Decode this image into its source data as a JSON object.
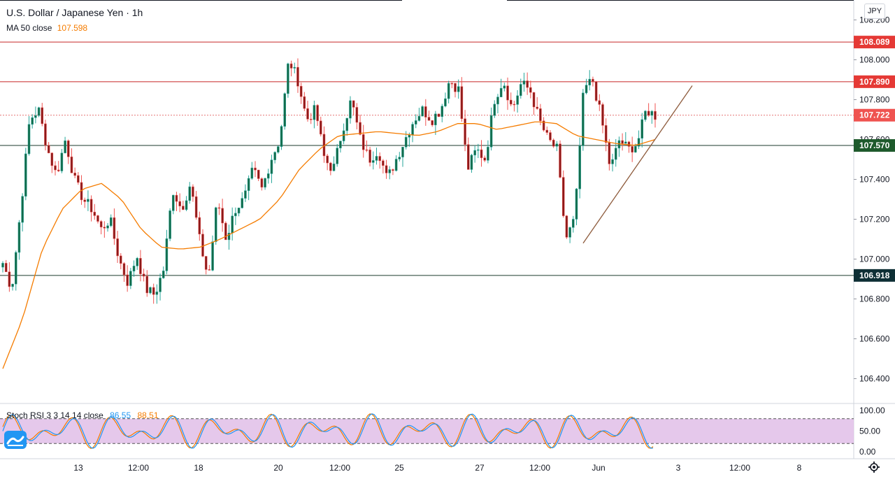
{
  "legend": {
    "title": "U.S. Dollar / Japanese Yen · 1h",
    "ma_label": "MA 50 close",
    "ma_value": "107.598"
  },
  "currency_badge": "JPY",
  "stoch": {
    "label": "Stoch RSI 3 3 14 14 close",
    "k_value": "86.55",
    "d_value": "88.51",
    "axis_ticks": [
      "100.00",
      "50.00",
      "0.00"
    ],
    "band_upper": 80,
    "band_lower": 20
  },
  "colors": {
    "up": "#26a69a",
    "down": "#ef5350",
    "candle_up_fill": "#136b4a",
    "candle_down_fill": "#8b1a1a",
    "ma": "#f57c00",
    "resistance": "#c62828",
    "support": "#1b3a2b",
    "last_price": "#e57373",
    "stoch_k": "#2196f3",
    "stoch_d": "#f57c00",
    "stoch_band": "#e1bee7",
    "trendline": "#8d5a3b"
  },
  "chart_data": {
    "type": "candlestick",
    "title": "U.S. Dollar / Japanese Yen · 1h",
    "y_axis": {
      "ticks": [
        "108.200",
        "108.000",
        "107.800",
        "107.600",
        "107.400",
        "107.200",
        "107.000",
        "106.800",
        "106.600",
        "106.400"
      ],
      "range": [
        106.3,
        108.25
      ]
    },
    "x_axis": {
      "ticks": [
        "13",
        "12:00",
        "18",
        "20",
        "12:00",
        "25",
        "27",
        "12:00",
        "Jun",
        "3",
        "12:00",
        "8"
      ]
    },
    "horizontal_levels": [
      {
        "value": 108.089,
        "label": "108.089",
        "kind": "resistance"
      },
      {
        "value": 107.89,
        "label": "107.890",
        "kind": "resistance"
      },
      {
        "value": 107.722,
        "label": "107.722",
        "kind": "last"
      },
      {
        "value": 107.57,
        "label": "107.570",
        "kind": "support"
      },
      {
        "value": 106.918,
        "label": "106.918",
        "kind": "support"
      }
    ],
    "trendline": {
      "from_price": 107.08,
      "to_price": 107.87
    },
    "ohlc_waypoints": [
      106.98,
      106.85,
      107.25,
      107.7,
      107.75,
      107.55,
      107.42,
      107.6,
      107.4,
      107.3,
      107.25,
      107.15,
      107.2,
      107.0,
      106.88,
      107.02,
      106.85,
      106.82,
      106.95,
      107.35,
      107.25,
      107.38,
      107.1,
      106.9,
      107.3,
      107.1,
      107.25,
      107.3,
      107.45,
      107.35,
      107.5,
      107.6,
      108.0,
      107.9,
      107.7,
      107.75,
      107.5,
      107.45,
      107.65,
      107.8,
      107.6,
      107.5,
      107.55,
      107.4,
      107.5,
      107.6,
      107.7,
      107.75,
      107.7,
      107.75,
      107.9,
      107.85,
      107.45,
      107.55,
      107.5,
      107.8,
      107.9,
      107.75,
      107.88,
      107.85,
      107.7,
      107.6,
      107.55,
      107.1,
      107.2,
      107.85,
      107.9,
      107.7,
      107.45,
      107.6,
      107.55,
      107.58,
      107.75,
      107.72
    ],
    "ma_waypoints": [
      106.45,
      106.7,
      107.05,
      107.25,
      107.35,
      107.38,
      107.3,
      107.15,
      107.06,
      107.05,
      107.06,
      107.1,
      107.15,
      107.2,
      107.3,
      107.45,
      107.55,
      107.62,
      107.63,
      107.64,
      107.63,
      107.62,
      107.64,
      107.68,
      107.68,
      107.65,
      107.67,
      107.69,
      107.68,
      107.62,
      107.6,
      107.58,
      107.57,
      107.6
    ]
  }
}
